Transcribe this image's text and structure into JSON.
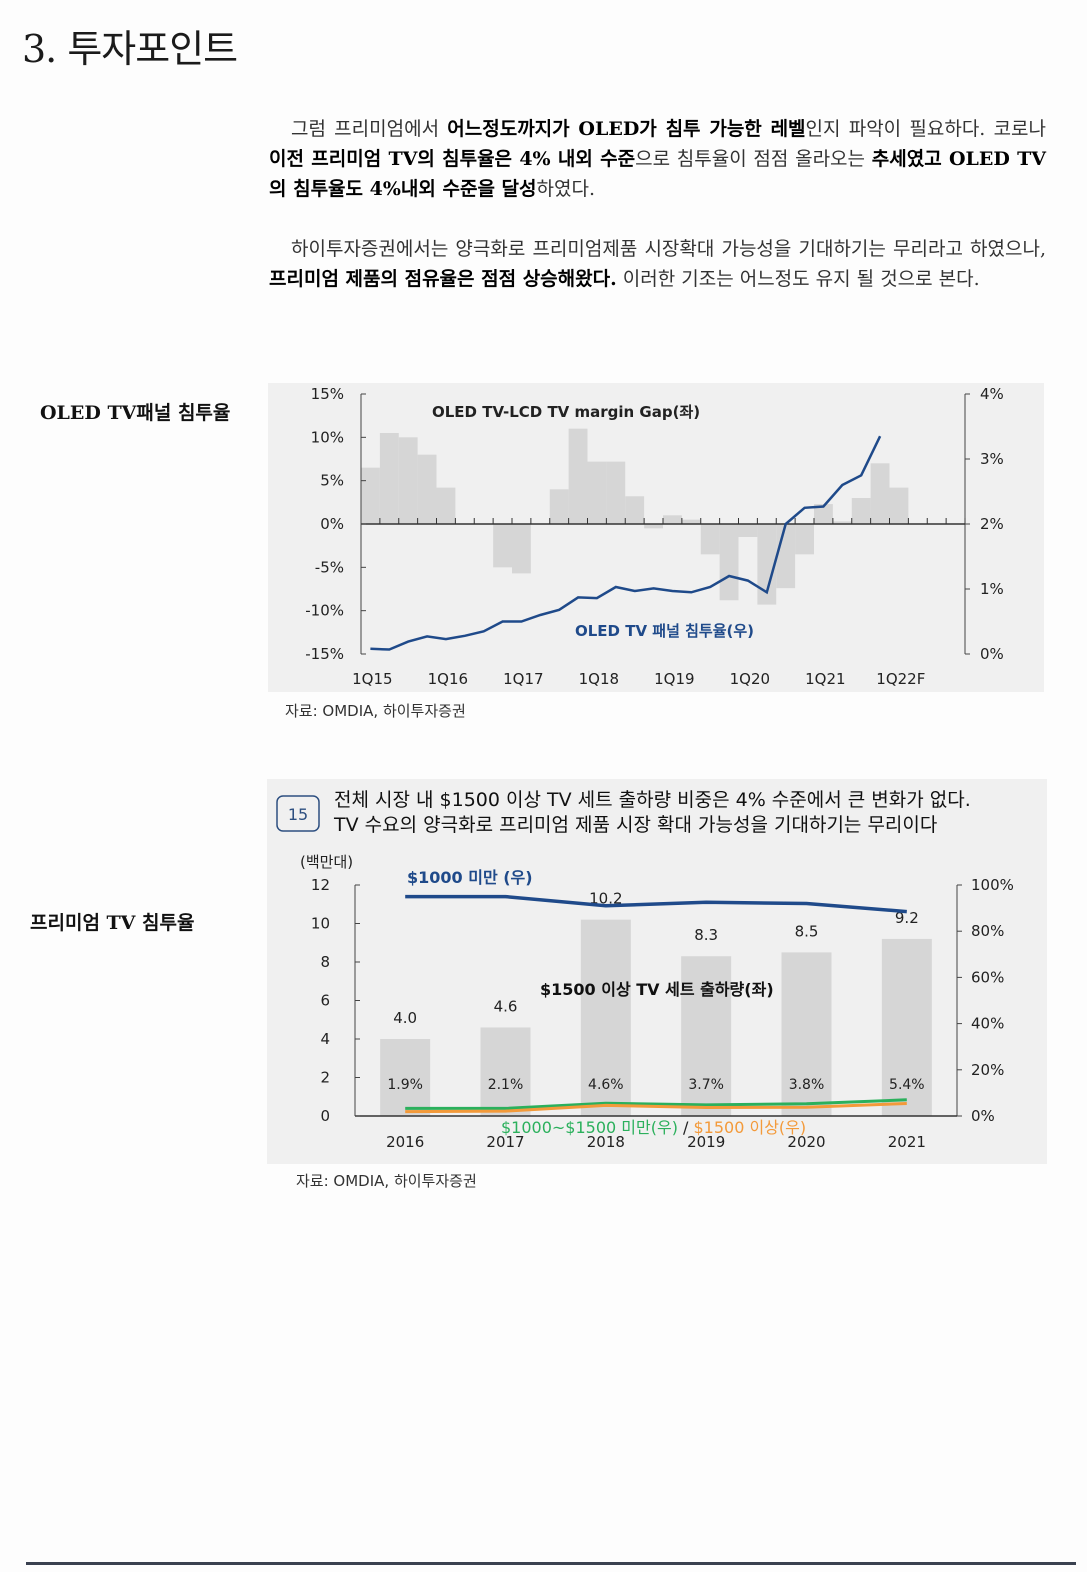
{
  "section_title": "3. 투자포인트",
  "para1": {
    "s1": "그럼 프리미엄에서 ",
    "b1": "어느정도까지가 OLED가 침투 가능한 레벨",
    "s2": "인지 파악이 필요하다. 코로나 ",
    "b2": "이전 프리미엄 TV의 침투율은 4% 내외 수준",
    "s3": "으로 침투율이 점점 올라오는 ",
    "b3": "추세였고 OLED TV의 침투율도 4%내외 수준을 달성",
    "s4": "하였다."
  },
  "para2": {
    "s1": "하이투자증권에서는 양극화로 프리미엄제품 시장확대 가능성을 기대하기는 무리라고 하였으나, ",
    "b1": "프리미엄 제품의 점유율은 점점 상승해왔다.",
    "s2": " 이러한 기조는 어느정도 유지 될 것으로 본다."
  },
  "side_label_1": "OLED TV패널 침투율",
  "side_label_2": "프리미엄 TV 침투율",
  "source_1": "자료: OMDIA, 하이투자증권",
  "source_2": "자료: OMDIA, 하이투자증권",
  "chart_data": [
    {
      "type": "bar+line",
      "left_axis": {
        "ylim": [
          -15,
          15
        ],
        "ticks": [
          "15%",
          "10%",
          "5%",
          "0%",
          "-5%",
          "-10%",
          "-15%"
        ]
      },
      "right_axis": {
        "ylim": [
          0,
          4
        ],
        "ticks": [
          "4%",
          "3%",
          "2%",
          "1%",
          "0%"
        ]
      },
      "x_tick_labels": [
        "1Q15",
        "1Q16",
        "1Q17",
        "1Q18",
        "1Q19",
        "1Q20",
        "1Q21",
        "1Q22F"
      ],
      "series": [
        {
          "name": "OLED TV-LCD TV margin Gap(좌)",
          "type": "bar",
          "color": "#d6d6d6",
          "values": [
            6.5,
            10.5,
            10,
            8,
            4.2,
            0,
            0,
            -5,
            -5.7,
            0,
            4,
            11,
            7.2,
            7.2,
            3.2,
            -0.5,
            1,
            0.5,
            -3.5,
            -8.8,
            -1.5,
            -9.3,
            -7.4,
            -3.5,
            2.3,
            0.3,
            3,
            7,
            4.2
          ]
        },
        {
          "name": "OLED TV 패널 침투율(우)",
          "type": "line",
          "color": "#1f4a8a",
          "values": [
            0.08,
            0.07,
            0.19,
            0.27,
            0.23,
            0.28,
            0.35,
            0.5,
            0.5,
            0.6,
            0.68,
            0.87,
            0.86,
            1.03,
            0.97,
            1.01,
            0.97,
            0.95,
            1.03,
            1.2,
            1.13,
            0.95,
            2.0,
            2.25,
            2.27,
            2.6,
            2.75,
            3.35
          ]
        }
      ]
    },
    {
      "type": "bar+line",
      "badge": "15",
      "title_line1": "전체 시장 내 $1500 이상 TV 세트 출하량 비중은 4% 수준에서 큰 변화가 없다.",
      "title_line2": "TV 수요의 양극화로 프리미엄 제품 시장 확대 가능성을 기대하기는 무리이다",
      "unit_label": "(백만대)",
      "categories": [
        "2016",
        "2017",
        "2018",
        "2019",
        "2020",
        "2021"
      ],
      "left_axis": {
        "ylim": [
          0,
          12
        ],
        "ticks": [
          "12",
          "10",
          "8",
          "6",
          "4",
          "2",
          "0"
        ]
      },
      "right_axis": {
        "ylim": [
          0,
          100
        ],
        "ticks": [
          "100%",
          "80%",
          "60%",
          "40%",
          "20%",
          "0%"
        ]
      },
      "bar_value_labels": [
        "4.0",
        "4.6",
        "10.2",
        "8.3",
        "8.5",
        "9.2"
      ],
      "pct_labels": [
        "1.9%",
        "2.1%",
        "4.6%",
        "3.7%",
        "3.8%",
        "5.4%"
      ],
      "series": [
        {
          "name": "$1500 이상 TV 세트 출하량(좌)",
          "type": "bar",
          "color": "#d6d6d6",
          "values": [
            4.0,
            4.6,
            10.2,
            8.3,
            8.5,
            9.2
          ]
        },
        {
          "name": "$1000 미만 (우)",
          "type": "line",
          "color": "#1f4a8a",
          "values": [
            95,
            95,
            91,
            92.5,
            92,
            88.5
          ]
        },
        {
          "name": "$1000~$1500 미만(우)",
          "type": "line",
          "color": "#2bb05c",
          "values": [
            3.3,
            3.3,
            5.5,
            4.8,
            5.3,
            7.0
          ]
        },
        {
          "name": "$1500 이상(우)",
          "type": "line",
          "color": "#f39a3a",
          "values": [
            1.9,
            2.1,
            4.6,
            3.7,
            3.8,
            5.4
          ]
        }
      ],
      "legend_separator": "/"
    }
  ]
}
